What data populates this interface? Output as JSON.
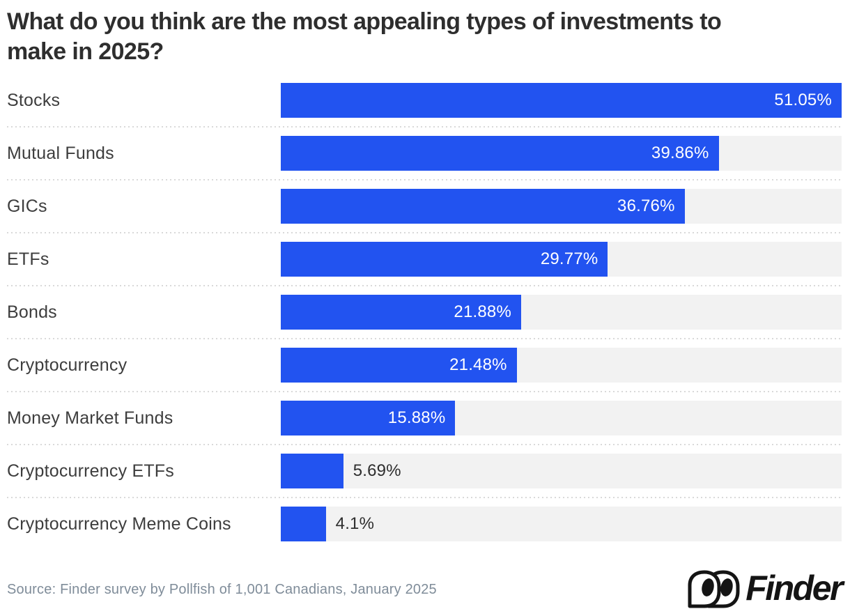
{
  "page": {
    "title": "What do you think are the most appealing types of investments to make in 2025?",
    "source": "Source: Finder survey by Pollfish of 1,001 Canadians, January 2025",
    "brand_name": "Finder"
  },
  "colors": {
    "bar": "#2253f0",
    "track": "#f2f2f2",
    "title_text": "#2e2e2e",
    "label_text": "#3d3d3d",
    "value_inside_text": "#ffffff",
    "value_outside_text": "#2e2e2e",
    "separator": "#d9d9d9",
    "source_text": "#7f8c99",
    "logo": "#141414"
  },
  "chart_data": {
    "type": "bar",
    "orientation": "horizontal",
    "title": "What do you think are the most appealing types of investments to make in 2025?",
    "categories": [
      "Stocks",
      "Mutual Funds",
      "GICs",
      "ETFs",
      "Bonds",
      "Cryptocurrency",
      "Money Market Funds",
      "Cryptocurrency ETFs",
      "Cryptocurrency Meme Coins"
    ],
    "values": [
      51.05,
      39.86,
      36.76,
      29.77,
      21.88,
      21.48,
      15.88,
      5.69,
      4.1
    ],
    "value_labels": [
      "51.05%",
      "39.86%",
      "36.76%",
      "29.77%",
      "21.88%",
      "21.48%",
      "15.88%",
      "5.69%",
      "4.1%"
    ],
    "value_suffix": "%",
    "xlim": [
      0,
      51.05
    ],
    "grid": false,
    "legend": false,
    "bar_color": "#2253f0",
    "track_color": "#f2f2f2",
    "source": "Source: Finder survey by Pollfish of 1,001 Canadians, January 2025"
  }
}
